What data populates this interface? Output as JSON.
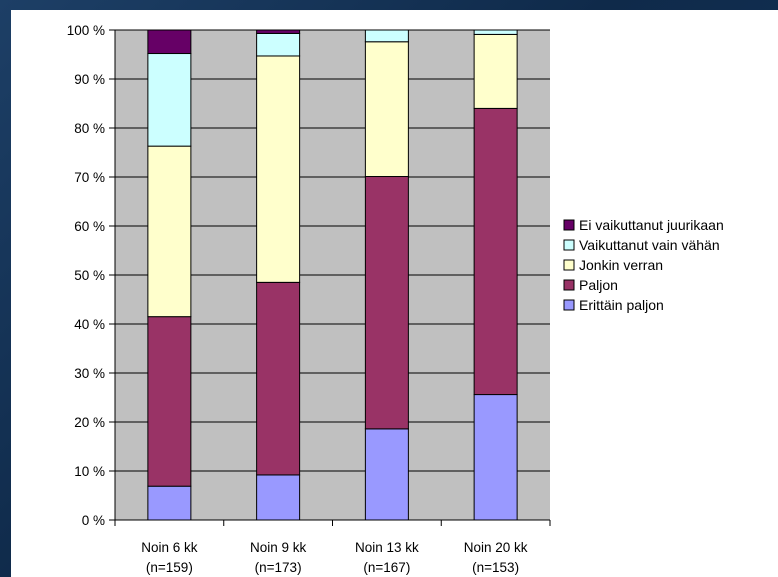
{
  "chart_data": {
    "type": "bar",
    "stacked": true,
    "percent": true,
    "categories": [
      [
        "Noin 6 kk",
        "(n=159)"
      ],
      [
        "Noin 9 kk",
        "(n=173)"
      ],
      [
        "Noin 13 kk",
        "(n=167)"
      ],
      [
        "Noin 20 kk",
        "(n=153)"
      ]
    ],
    "series": [
      {
        "name": "Erittäin paljon",
        "color": "#9999ff",
        "values": [
          6.9,
          9.2,
          18.6,
          25.6
        ]
      },
      {
        "name": "Paljon",
        "color": "#993366",
        "values": [
          34.6,
          39.3,
          51.5,
          58.4
        ]
      },
      {
        "name": "Jonkin verran",
        "color": "#ffffcc",
        "values": [
          34.8,
          46.2,
          27.5,
          15.1
        ]
      },
      {
        "name": "Vaikuttanut vain vähän",
        "color": "#ccffff",
        "values": [
          18.9,
          4.6,
          2.4,
          0.9
        ]
      },
      {
        "name": "Ei vaikuttanut juurikaan",
        "color": "#660066",
        "values": [
          4.8,
          0.7,
          0.0,
          0.0
        ]
      }
    ],
    "yticks": [
      "0 %",
      "10 %",
      "20 %",
      "30 %",
      "40 %",
      "50 %",
      "60 %",
      "70 %",
      "80 %",
      "90 %",
      "100 %"
    ],
    "ylim": [
      0,
      100
    ],
    "grid": true,
    "legend_position": "right",
    "plot_background": "#c0c0c0"
  }
}
